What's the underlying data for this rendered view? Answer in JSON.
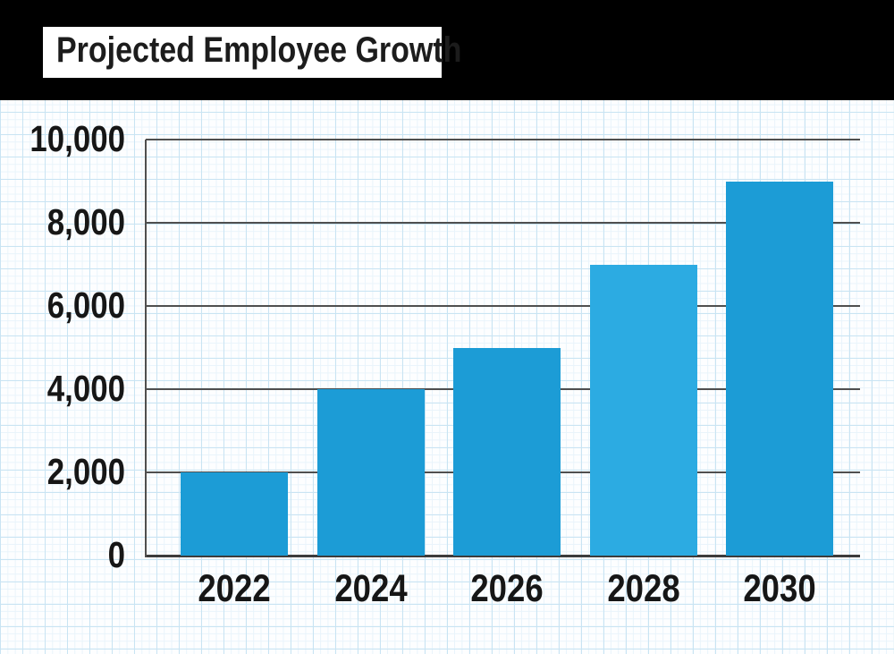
{
  "header": {
    "title": "Projected Employee Growth"
  },
  "chart_data": {
    "type": "bar",
    "title": "Projected Employee Growth",
    "categories": [
      "2022",
      "2024",
      "2026",
      "2028",
      "2030"
    ],
    "values": [
      2000,
      4000,
      5000,
      7000,
      9000
    ],
    "xlabel": "",
    "ylabel": "",
    "ylim": [
      0,
      10000
    ],
    "ytick_interval": 2000,
    "yticks": [
      0,
      2000,
      4000,
      6000,
      8000,
      10000
    ],
    "ytick_labels": [
      "0",
      "2,000",
      "4,000",
      "6,000",
      "8,000",
      "10,000"
    ],
    "grid": "horizontal dark gridlines over light-blue graph-paper background",
    "legend_position": "none",
    "bar_colors": [
      "#1c9cd6",
      "#1c9cd6",
      "#1c9cd6",
      "#2cabe2",
      "#1c9cd6"
    ]
  },
  "colors": {
    "header_band": "#000000",
    "title_plate": "#ffffff",
    "title_text": "#1c1c1c",
    "paper": "#fdfeff",
    "grid_minor": "#e9f4fb",
    "grid_major": "#c9e4f3",
    "axis": "#4f4f4f",
    "baseline": "#3c3c3c",
    "tick_label": "#161616",
    "bar": "#1c9cd6",
    "bar_highlight": "#2cabe2"
  }
}
